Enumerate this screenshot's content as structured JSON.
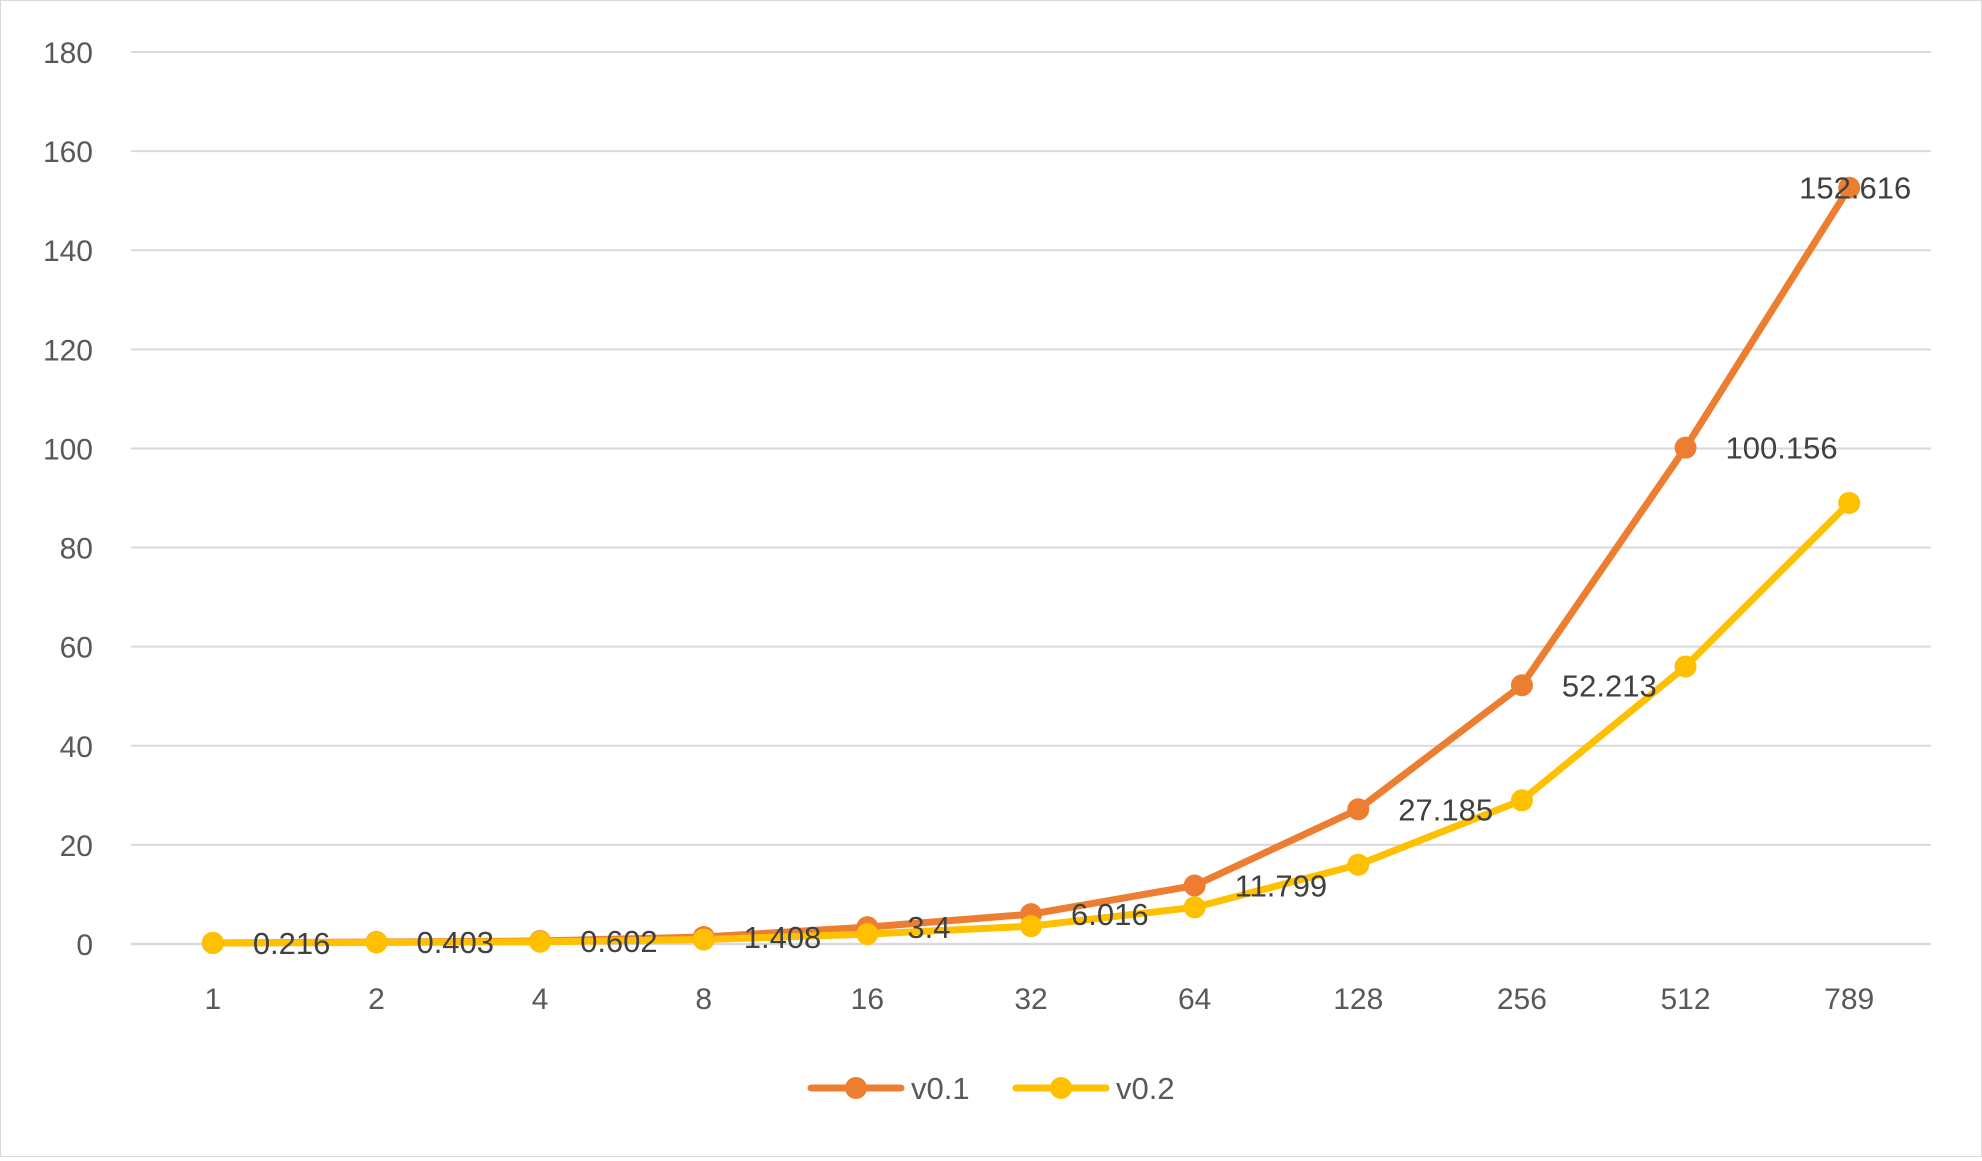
{
  "chart_data": {
    "type": "line",
    "categories": [
      "1",
      "2",
      "4",
      "8",
      "16",
      "32",
      "64",
      "128",
      "256",
      "512",
      "789"
    ],
    "series": [
      {
        "name": "v0.1",
        "color": "#ED7D31",
        "values": [
          0.216,
          0.403,
          0.602,
          1.408,
          3.4,
          6.016,
          11.799,
          27.185,
          52.213,
          100.156,
          152.616
        ],
        "data_labels": [
          "0.216",
          "0.403",
          "0.602",
          "1.408",
          "3.4",
          "6.016",
          "11.799",
          "27.185",
          "52.213",
          "100.156",
          "152.616"
        ]
      },
      {
        "name": "v0.2",
        "color": "#FFC000",
        "values": [
          0.2,
          0.3,
          0.45,
          0.9,
          2.0,
          3.6,
          7.4,
          16.0,
          29.0,
          56.0,
          89.0
        ]
      }
    ],
    "y_ticks": [
      "0",
      "20",
      "40",
      "60",
      "80",
      "100",
      "120",
      "140",
      "160",
      "180"
    ],
    "ylim": [
      0,
      180
    ],
    "title": "",
    "xlabel": "",
    "ylabel": "",
    "grid": true,
    "legend": "bottom-center",
    "gridline_color": "#D9D9D9",
    "tick_label_color": "#595959"
  }
}
